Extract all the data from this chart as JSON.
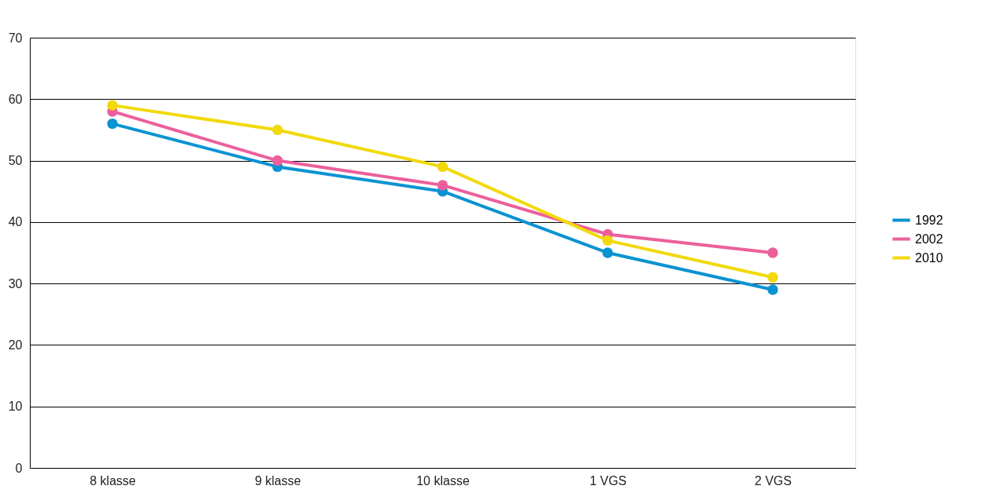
{
  "chart_data": {
    "type": "line",
    "categories": [
      "8 klasse",
      "9 klasse",
      "10 klasse",
      "1 VGS",
      "2 VGS"
    ],
    "series": [
      {
        "name": "1992",
        "color": "#0a93d2",
        "values": [
          56,
          49,
          45,
          35,
          29
        ]
      },
      {
        "name": "2002",
        "color": "#ec5f9c",
        "values": [
          58,
          50,
          46,
          38,
          35
        ]
      },
      {
        "name": "2010",
        "color": "#f2d90a",
        "values": [
          59,
          55,
          49,
          37,
          31
        ]
      }
    ],
    "ylim": [
      0,
      70
    ],
    "yticks": [
      0,
      10,
      20,
      30,
      40,
      50,
      60,
      70
    ],
    "grid": "y",
    "legend": "right",
    "marker": "circle",
    "line_style": "solid"
  }
}
